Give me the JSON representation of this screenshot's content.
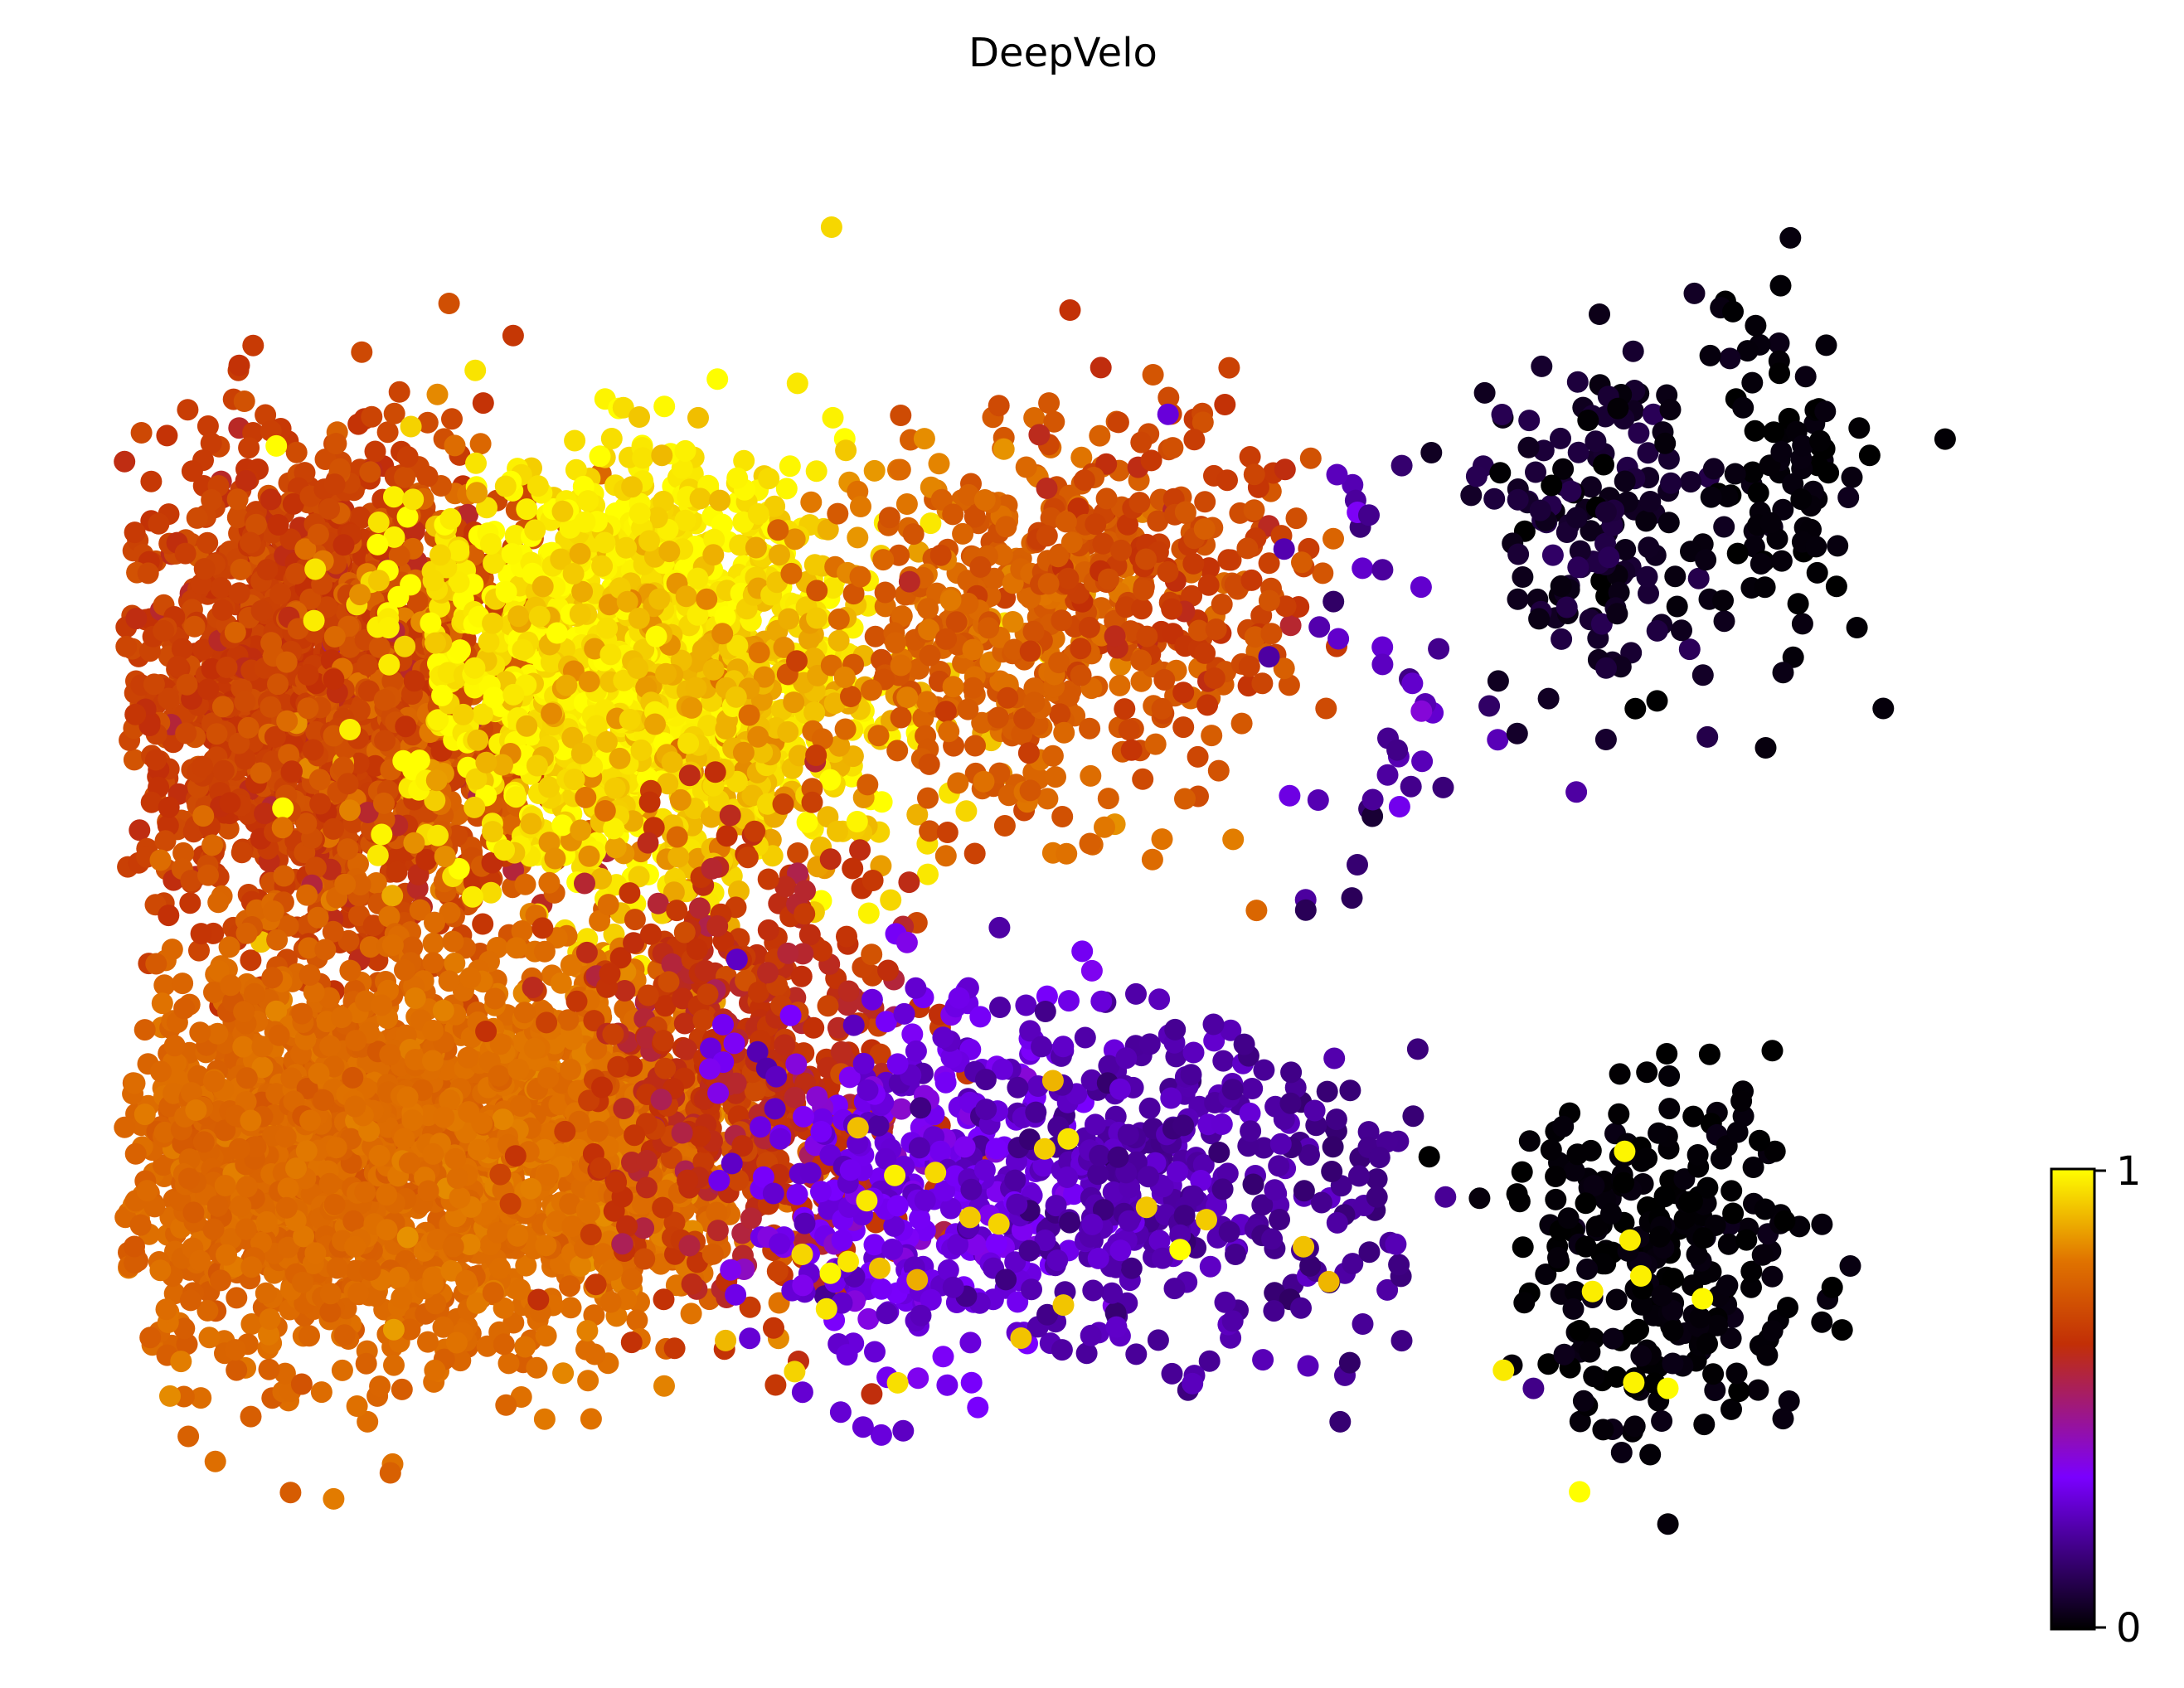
{
  "chart_data": {
    "type": "scatter",
    "title": "DeepVelo",
    "xlabel": "",
    "ylabel": "",
    "axes_visible": false,
    "grid": false,
    "legend": "none",
    "colormap": "gnuplot",
    "colormap_stops": [
      "#000000",
      "#7a00ff",
      "#c22f06",
      "#e07300",
      "#ffff00"
    ],
    "color_range": [
      0,
      1
    ],
    "colorbar": {
      "placement": "bottom-right",
      "ticks": [
        {
          "value": 0,
          "label": "0"
        },
        {
          "value": 1,
          "label": "1"
        }
      ]
    },
    "x_range": [
      0,
      1
    ],
    "y_range": [
      0,
      1
    ],
    "clusters": [
      {
        "x": 0.09,
        "y": 0.62,
        "sx": 0.045,
        "sy": 0.08,
        "n": 1400,
        "value": 0.66,
        "value_sd": 0.03
      },
      {
        "x": 0.16,
        "y": 0.6,
        "sx": 0.04,
        "sy": 0.08,
        "n": 700,
        "value": 0.7,
        "value_sd": 0.06
      },
      {
        "x": 0.27,
        "y": 0.64,
        "sx": 0.055,
        "sy": 0.07,
        "n": 1300,
        "value": 0.97,
        "value_sd": 0.03
      },
      {
        "x": 0.31,
        "y": 0.6,
        "sx": 0.06,
        "sy": 0.07,
        "n": 400,
        "value": 0.9,
        "value_sd": 0.04
      },
      {
        "x": 0.47,
        "y": 0.66,
        "sx": 0.05,
        "sy": 0.065,
        "n": 450,
        "value": 0.75,
        "value_sd": 0.04
      },
      {
        "x": 0.55,
        "y": 0.7,
        "sx": 0.04,
        "sy": 0.06,
        "n": 200,
        "value": 0.68,
        "value_sd": 0.04
      },
      {
        "x": 0.11,
        "y": 0.29,
        "sx": 0.055,
        "sy": 0.07,
        "n": 1600,
        "value": 0.77,
        "value_sd": 0.02
      },
      {
        "x": 0.24,
        "y": 0.3,
        "sx": 0.045,
        "sy": 0.065,
        "n": 900,
        "value": 0.79,
        "value_sd": 0.02
      },
      {
        "x": 0.33,
        "y": 0.35,
        "sx": 0.045,
        "sy": 0.08,
        "n": 500,
        "value": 0.62,
        "value_sd": 0.04
      },
      {
        "x": 0.42,
        "y": 0.28,
        "sx": 0.045,
        "sy": 0.065,
        "n": 350,
        "value": 0.3,
        "value_sd": 0.04
      },
      {
        "x": 0.53,
        "y": 0.28,
        "sx": 0.045,
        "sy": 0.06,
        "n": 300,
        "value": 0.22,
        "value_sd": 0.03
      },
      {
        "x": 0.63,
        "y": 0.26,
        "sx": 0.04,
        "sy": 0.06,
        "n": 80,
        "value": 0.18,
        "value_sd": 0.03
      },
      {
        "x": 0.67,
        "y": 0.62,
        "sx": 0.035,
        "sy": 0.09,
        "n": 45,
        "value": 0.22,
        "value_sd": 0.07
      },
      {
        "x": 0.78,
        "y": 0.73,
        "sx": 0.03,
        "sy": 0.06,
        "n": 160,
        "value": 0.05,
        "value_sd": 0.03
      },
      {
        "x": 0.87,
        "y": 0.77,
        "sx": 0.025,
        "sy": 0.065,
        "n": 90,
        "value": 0.01,
        "value_sd": 0.01
      },
      {
        "x": 0.81,
        "y": 0.22,
        "sx": 0.04,
        "sy": 0.06,
        "n": 260,
        "value": 0.01,
        "value_sd": 0.01
      },
      {
        "x": 0.43,
        "y": 0.24,
        "sx": 0.08,
        "sy": 0.06,
        "n": 25,
        "value": 0.94,
        "value_sd": 0.03
      },
      {
        "x": 0.79,
        "y": 0.2,
        "sx": 0.02,
        "sy": 0.06,
        "n": 9,
        "value": 0.99,
        "value_sd": 0.01
      }
    ]
  }
}
